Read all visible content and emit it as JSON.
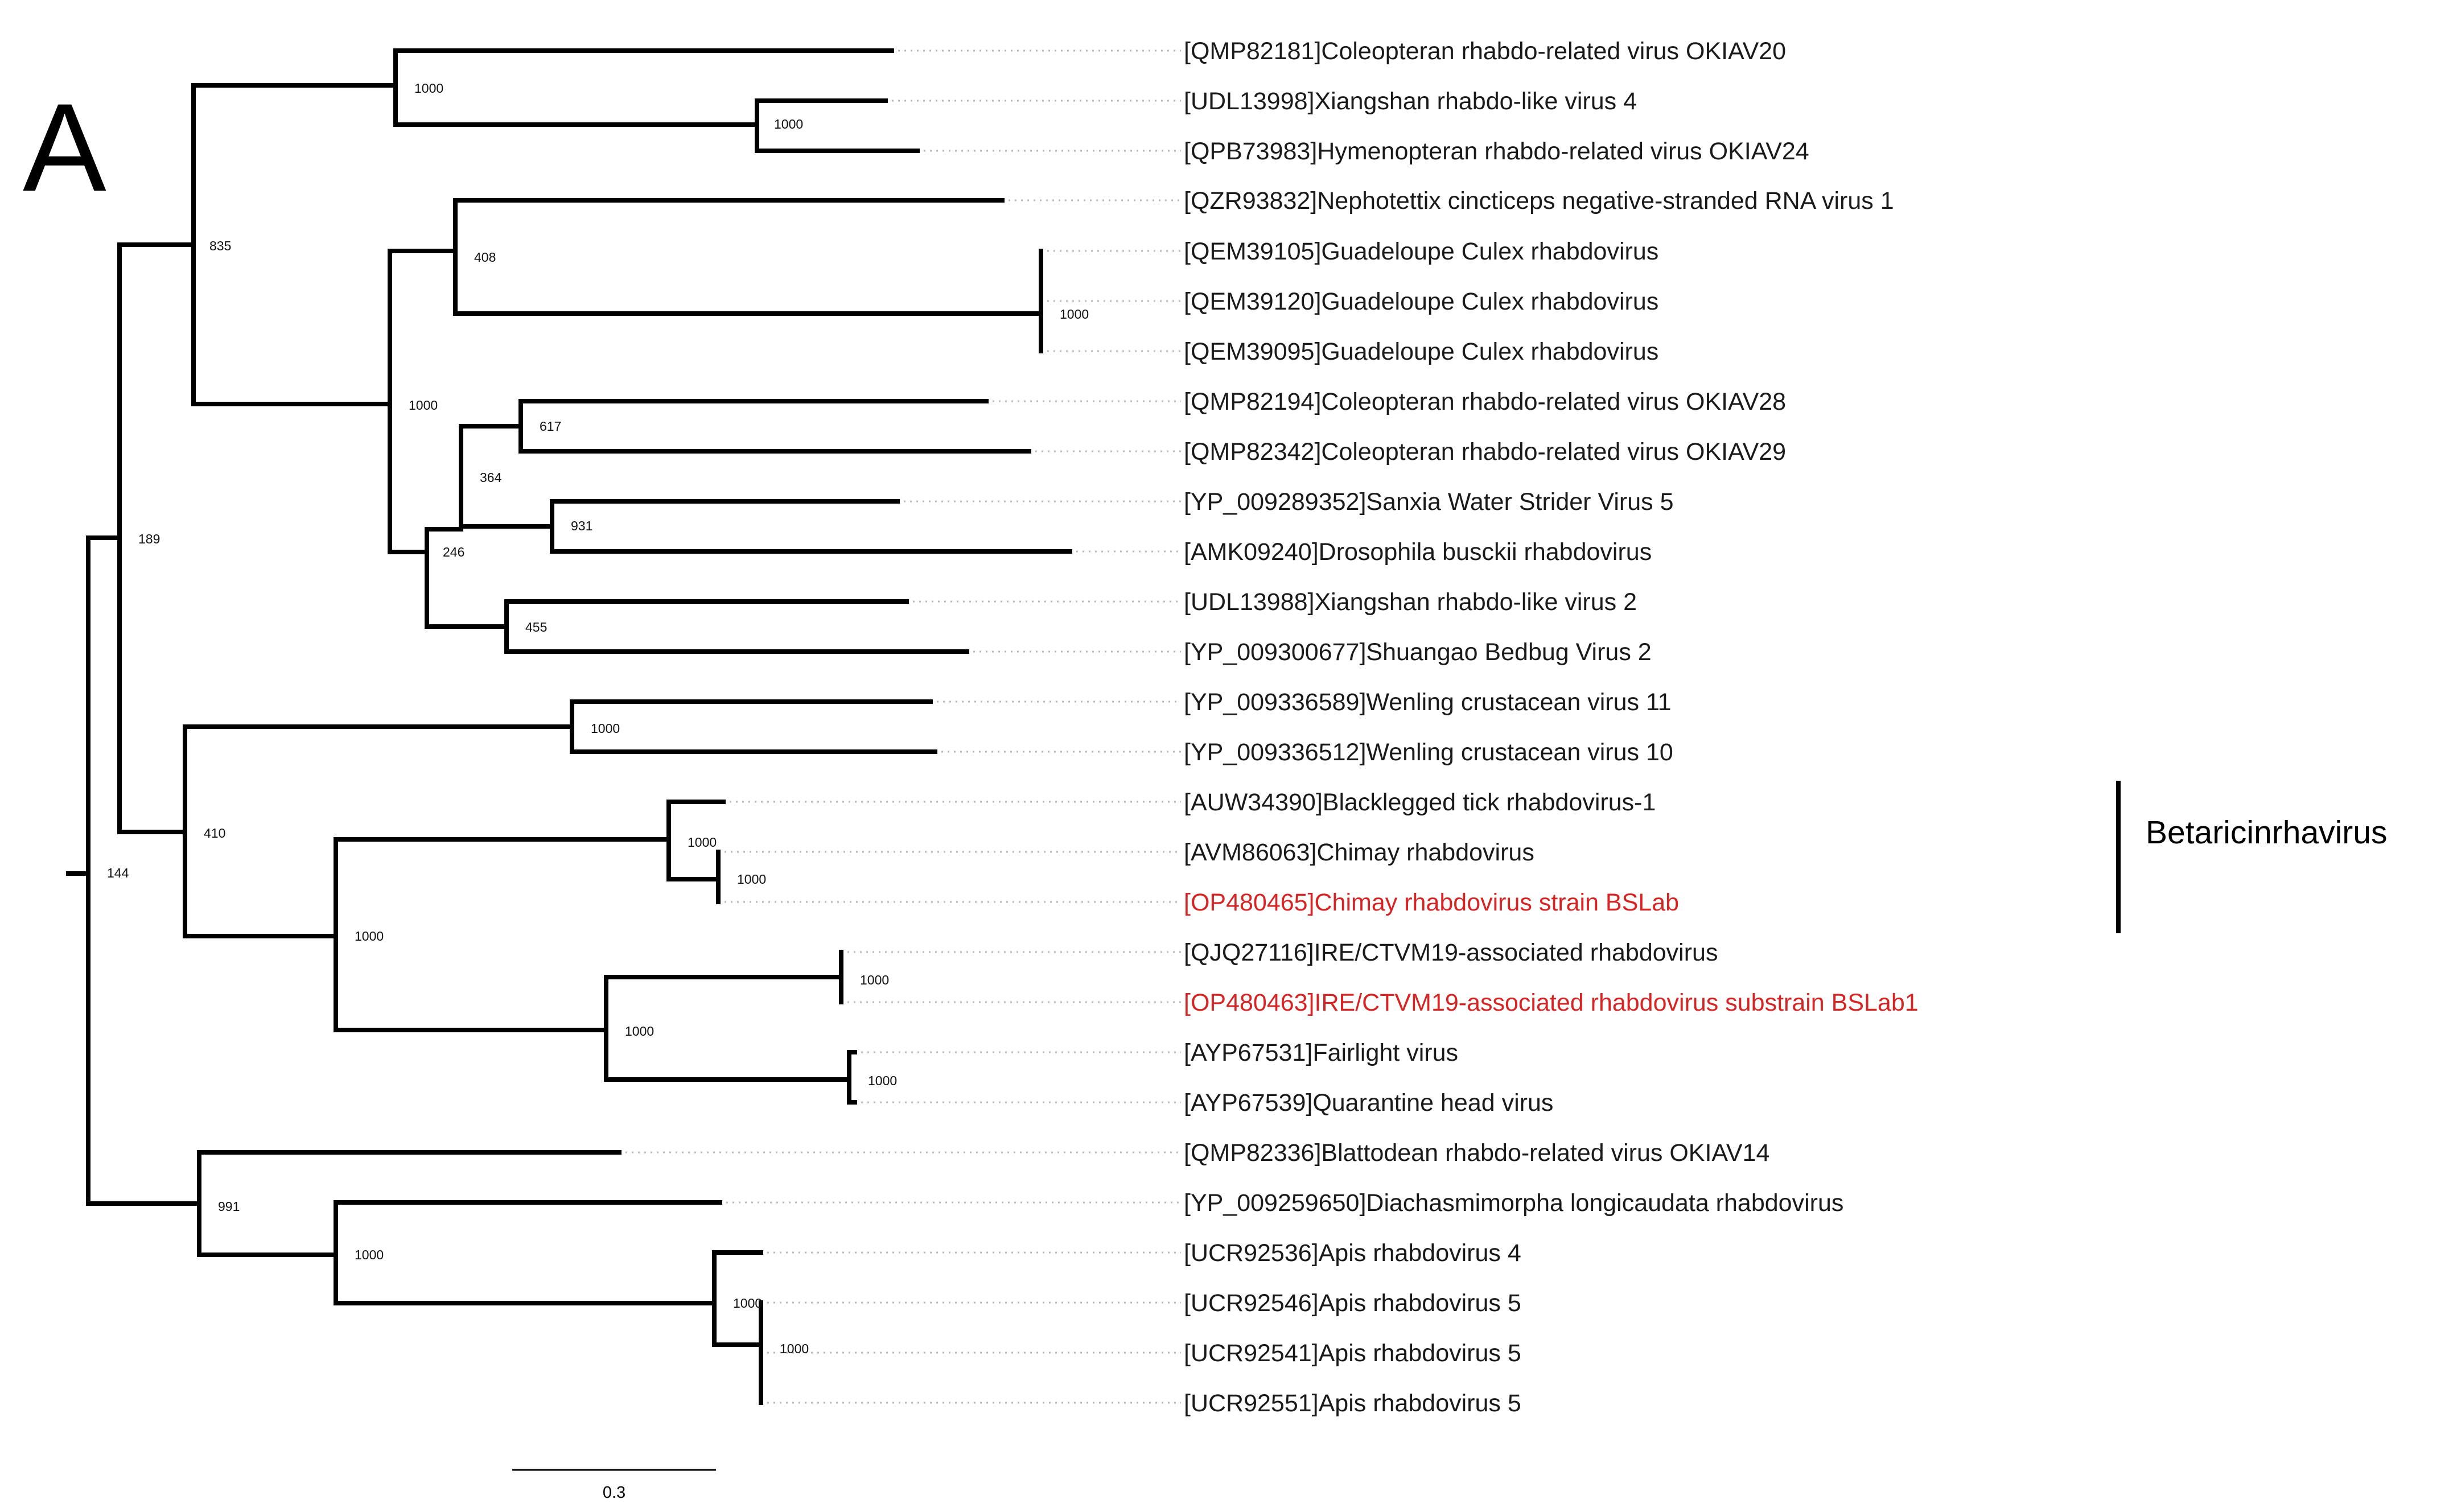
{
  "figure": {
    "panel_label": "A",
    "clade_label": "Betaricinrhavirus",
    "scale_bar_label": "0.3",
    "highlight_color": "#d42424",
    "line_color": "#000000"
  },
  "taxa": [
    {
      "label": "[QMP82181]Coleopteran rhabdo-related virus OKIAV20",
      "highlight": false
    },
    {
      "label": "[UDL13998]Xiangshan rhabdo-like virus 4",
      "highlight": false
    },
    {
      "label": "[QPB73983]Hymenopteran rhabdo-related virus OKIAV24",
      "highlight": false
    },
    {
      "label": "[QZR93832]Nephotettix cincticeps negative-stranded RNA virus 1",
      "highlight": false
    },
    {
      "label": "[QEM39105]Guadeloupe Culex rhabdovirus",
      "highlight": false
    },
    {
      "label": "[QEM39120]Guadeloupe Culex rhabdovirus",
      "highlight": false
    },
    {
      "label": "[QEM39095]Guadeloupe Culex rhabdovirus",
      "highlight": false
    },
    {
      "label": "[QMP82194]Coleopteran rhabdo-related virus OKIAV28",
      "highlight": false
    },
    {
      "label": "[QMP82342]Coleopteran rhabdo-related virus OKIAV29",
      "highlight": false
    },
    {
      "label": "[YP_009289352]Sanxia Water Strider Virus 5",
      "highlight": false
    },
    {
      "label": "[AMK09240]Drosophila busckii rhabdovirus",
      "highlight": false
    },
    {
      "label": "[UDL13988]Xiangshan rhabdo-like virus 2",
      "highlight": false
    },
    {
      "label": "[YP_009300677]Shuangao Bedbug Virus 2",
      "highlight": false
    },
    {
      "label": "[YP_009336589]Wenling crustacean virus 11",
      "highlight": false
    },
    {
      "label": "[YP_009336512]Wenling crustacean virus 10",
      "highlight": false
    },
    {
      "label": "[AUW34390]Blacklegged tick rhabdovirus-1",
      "highlight": false
    },
    {
      "label": "[AVM86063]Chimay rhabdovirus",
      "highlight": false
    },
    {
      "label": "[OP480465]Chimay rhabdovirus strain BSLab",
      "highlight": true
    },
    {
      "label": "[QJQ27116]IRE/CTVM19-associated rhabdovirus",
      "highlight": false
    },
    {
      "label": "[OP480463]IRE/CTVM19-associated rhabdovirus substrain BSLab1",
      "highlight": true
    },
    {
      "label": "[AYP67531]Fairlight virus",
      "highlight": false
    },
    {
      "label": "[AYP67539]Quarantine head virus",
      "highlight": false
    },
    {
      "label": "[QMP82336]Blattodean rhabdo-related virus OKIAV14",
      "highlight": false
    },
    {
      "label": "[YP_009259650]Diachasmimorpha longicaudata rhabdovirus",
      "highlight": false
    },
    {
      "label": "[UCR92536]Apis rhabdovirus 4",
      "highlight": false
    },
    {
      "label": "[UCR92546]Apis rhabdovirus 5",
      "highlight": false
    },
    {
      "label": "[UCR92541]Apis rhabdovirus 5",
      "highlight": false
    },
    {
      "label": "[UCR92551]Apis rhabdovirus 5",
      "highlight": false
    }
  ],
  "bootstrap": [
    "1000",
    "1000",
    "835",
    "408",
    "1000",
    "1000",
    "617",
    "364",
    "931",
    "246",
    "455",
    "189",
    "1000",
    "410",
    "1000",
    "1000",
    "1000",
    "144",
    "1000",
    "1000",
    "1000",
    "991",
    "1000",
    "1000",
    "1000"
  ]
}
